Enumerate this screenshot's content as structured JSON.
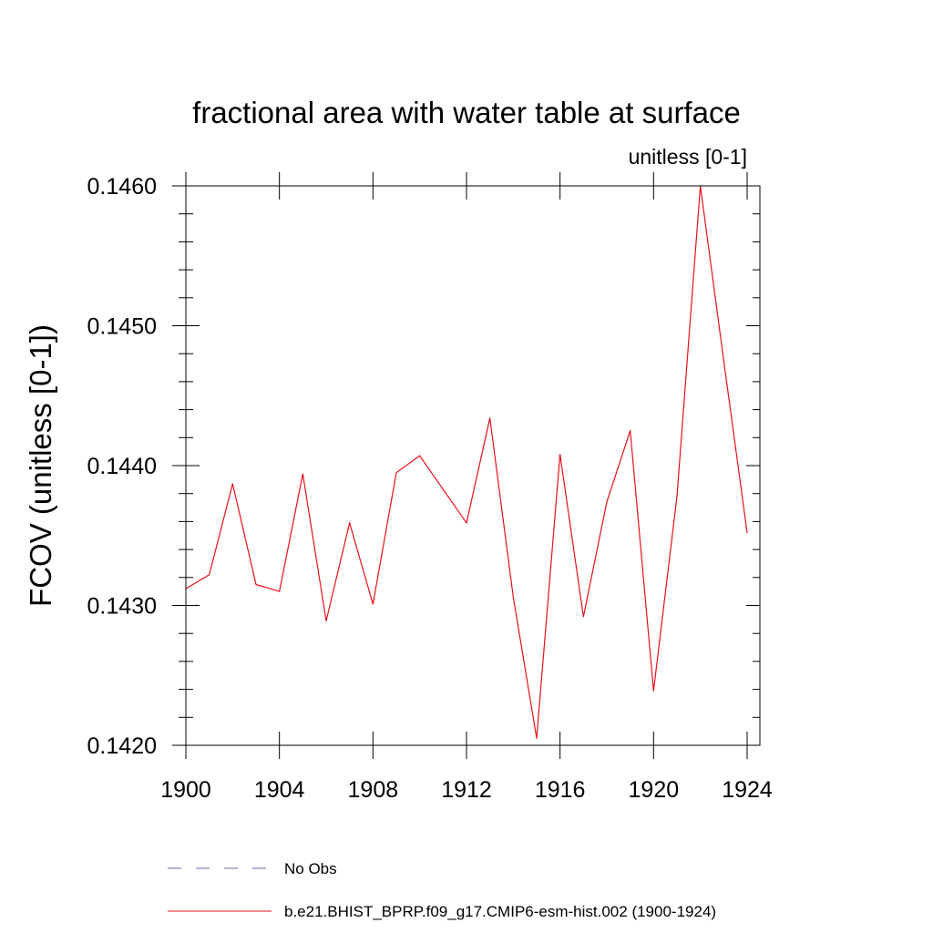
{
  "chart_data": {
    "type": "line",
    "title": "fractional area with water table at surface",
    "subtitle": "unitless [0-1]",
    "xlabel": "",
    "ylabel": "FCOV  (unitless [0-1])",
    "xlim": [
      1900,
      1924
    ],
    "ylim": [
      0.142,
      0.146
    ],
    "x_ticks": [
      1900,
      1904,
      1908,
      1912,
      1916,
      1920,
      1924
    ],
    "x_tick_labels": [
      "1900",
      "1904",
      "1908",
      "1912",
      "1916",
      "1920",
      "1924"
    ],
    "y_ticks": [
      0.142,
      0.143,
      0.144,
      0.145,
      0.146
    ],
    "y_tick_labels": [
      "0.1420",
      "0.1430",
      "0.1440",
      "0.1450",
      "0.1460"
    ],
    "grid": false,
    "legend_position": "bottom",
    "x": [
      1900,
      1901,
      1902,
      1903,
      1904,
      1905,
      1906,
      1907,
      1908,
      1909,
      1910,
      1911,
      1912,
      1913,
      1914,
      1915,
      1916,
      1917,
      1918,
      1919,
      1920,
      1921,
      1922,
      1923,
      1924
    ],
    "series": [
      {
        "name": "b.e21.BHIST_BPRP.f09_g17.CMIP6-esm-hist.002 (1900-1924)",
        "color": "#e8101a",
        "style": "solid",
        "values": [
          0.14312,
          0.14322,
          0.14387,
          0.14315,
          0.1431,
          0.14394,
          0.14289,
          0.14359,
          0.14301,
          0.14395,
          0.14407,
          0.14383,
          0.14359,
          0.14434,
          0.14306,
          0.14205,
          0.14408,
          0.14292,
          0.14374,
          0.14425,
          0.14239,
          0.14378,
          0.146,
          0.14475,
          0.14352
        ]
      }
    ],
    "legend": [
      {
        "label": "No Obs",
        "color": "#6a6aa8",
        "style": "dashed"
      },
      {
        "label": "b.e21.BHIST_BPRP.f09_g17.CMIP6-esm-hist.002 (1900-1924)",
        "color": "#e8101a",
        "style": "solid"
      }
    ]
  }
}
